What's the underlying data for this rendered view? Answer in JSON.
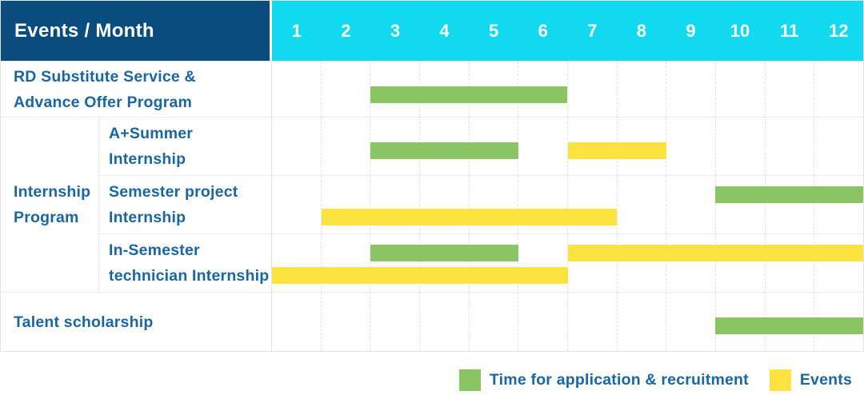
{
  "header": {
    "title": "Events / Month",
    "months": [
      "1",
      "2",
      "3",
      "4",
      "5",
      "6",
      "7",
      "8",
      "9",
      "10",
      "11",
      "12"
    ]
  },
  "colors": {
    "header_bg": "#0B4C7E",
    "months_bg": "#10D9F0",
    "green": "#8AC463",
    "yellow": "#FDE33F",
    "text_blue": "#1A66A5",
    "grid_line": "#E3E3E3"
  },
  "legend": [
    {
      "color_key": "green",
      "label": "Time for application & recruitment"
    },
    {
      "color_key": "yellow",
      "label": "Events"
    }
  ],
  "chart_data": {
    "type": "bar",
    "variant": "gantt",
    "title": "Events / Month",
    "x_unit": "month",
    "x_range": [
      1,
      12
    ],
    "grid": "dashed-vertical-month-lines",
    "legend_position": "bottom-right",
    "series_meaning": {
      "green": "Time for application & recruitment",
      "yellow": "Events"
    },
    "group_label": {
      "lines": [
        "Internship",
        "Program"
      ],
      "spans_rows": [
        1,
        3
      ]
    },
    "rows": [
      {
        "id": "rd-substitute-service",
        "label_lines": [
          "RD Substitute Service &",
          "Advance Offer Program"
        ],
        "bars": [
          {
            "color": "green",
            "start_month": 3,
            "end_month": 6,
            "line": "single"
          }
        ]
      },
      {
        "id": "a-plus-summer-internship",
        "group": "Internship Program",
        "label_lines": [
          "A+Summer",
          "Internship"
        ],
        "bars": [
          {
            "color": "green",
            "start_month": 3,
            "end_month": 5,
            "line": "single"
          },
          {
            "color": "yellow",
            "start_month": 7,
            "end_month": 8,
            "line": "single"
          }
        ]
      },
      {
        "id": "semester-project-internship",
        "group": "Internship Program",
        "label_lines": [
          "Semester project",
          "Internship"
        ],
        "bars": [
          {
            "color": "green",
            "start_month": 10,
            "end_month": 12,
            "line": "top"
          },
          {
            "color": "yellow",
            "start_month": 2,
            "end_month": 7,
            "line": "bottom"
          }
        ]
      },
      {
        "id": "in-semester-technician-internship",
        "group": "Internship Program",
        "label_lines": [
          "In-Semester",
          "technician Internship"
        ],
        "bars": [
          {
            "color": "green",
            "start_month": 3,
            "end_month": 5,
            "line": "top"
          },
          {
            "color": "yellow",
            "start_month": 7,
            "end_month": 12,
            "line": "top"
          },
          {
            "color": "yellow",
            "start_month": 1,
            "end_month": 6,
            "line": "bottom"
          }
        ]
      },
      {
        "id": "talent-scholarship",
        "label_lines": [
          "Talent scholarship"
        ],
        "bars": [
          {
            "color": "green",
            "start_month": 10,
            "end_month": 12,
            "line": "single"
          }
        ]
      }
    ]
  }
}
